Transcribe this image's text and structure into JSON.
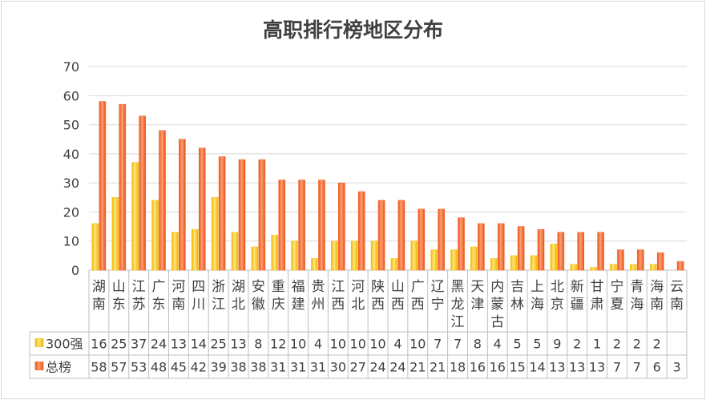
{
  "chart_data": {
    "type": "bar",
    "title": "高职排行榜地区分布",
    "categories": [
      "湖南",
      "山东",
      "江苏",
      "广东",
      "河南",
      "四川",
      "浙江",
      "湖北",
      "安徽",
      "重庆",
      "福建",
      "贵州",
      "江西",
      "河北",
      "陕西",
      "山西",
      "广西",
      "辽宁",
      "黑龙江",
      "天津",
      "内蒙古",
      "吉林",
      "上海",
      "北京",
      "新疆",
      "甘肃",
      "宁夏",
      "青海",
      "海南",
      "云南"
    ],
    "series": [
      {
        "name": "300强",
        "color": "#f5c518",
        "values": [
          16,
          25,
          37,
          24,
          13,
          14,
          25,
          13,
          8,
          12,
          10,
          4,
          10,
          10,
          10,
          4,
          10,
          7,
          7,
          8,
          4,
          5,
          5,
          9,
          2,
          1,
          2,
          2,
          2,
          null
        ]
      },
      {
        "name": "总榜",
        "color": "#f26a2e",
        "values": [
          58,
          57,
          53,
          48,
          45,
          42,
          39,
          38,
          38,
          31,
          31,
          31,
          30,
          27,
          24,
          24,
          21,
          21,
          18,
          16,
          16,
          15,
          14,
          13,
          13,
          13,
          7,
          7,
          6,
          3
        ]
      }
    ],
    "yticks": [
      0,
      10,
      20,
      30,
      40,
      50,
      60,
      70
    ],
    "ylim": [
      0,
      70
    ],
    "grid": true,
    "legend": "data-table"
  }
}
